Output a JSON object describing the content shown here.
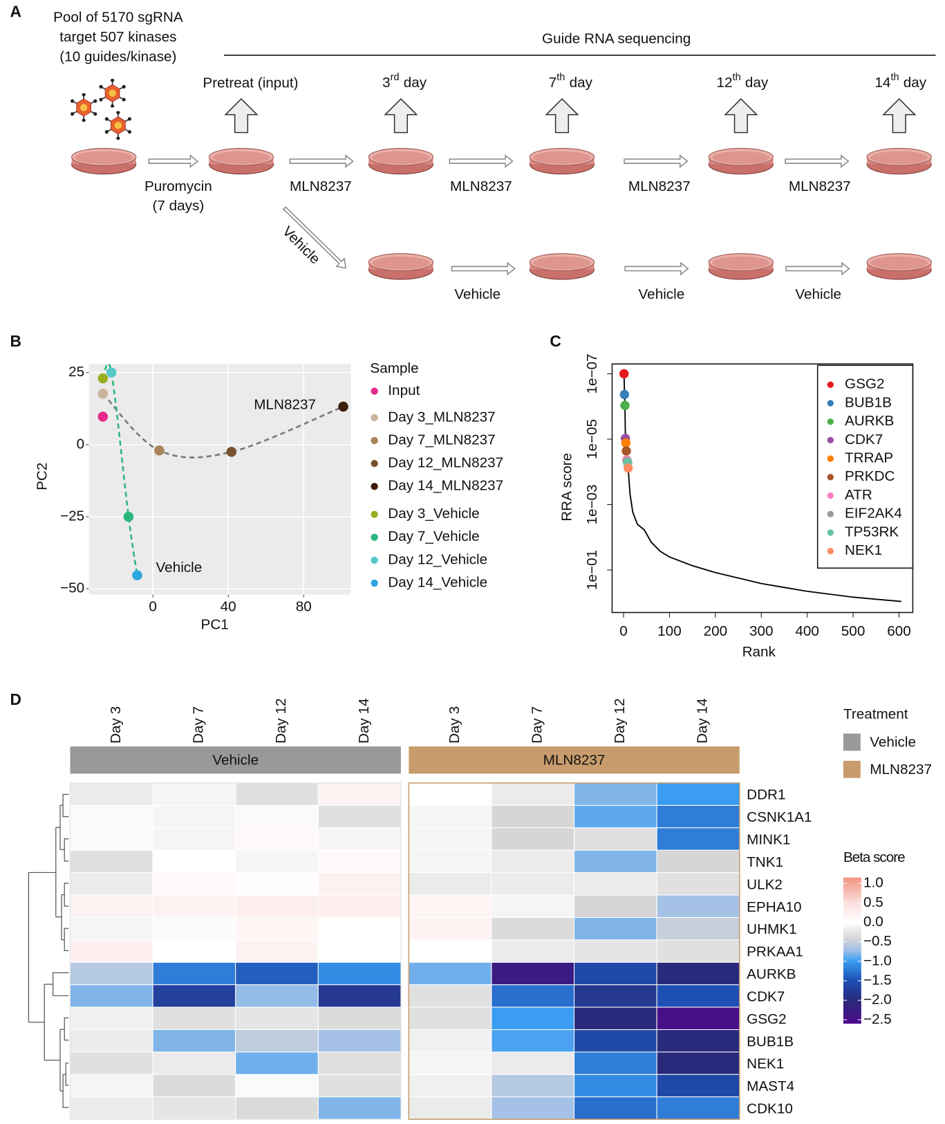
{
  "panel_labels": [
    "A",
    "B",
    "C",
    "D"
  ],
  "schematic": {
    "pool": [
      "Pool of 5170 sgRNA",
      "target 507 kinases",
      "(10 guides/kinase)"
    ],
    "sequencing": "Guide RNA sequencing",
    "first_timepoint": "Pretreat (input)",
    "timepoints": [
      {
        "num": "3",
        "sup": "rd",
        "unit": "day"
      },
      {
        "num": "7",
        "sup": "th",
        "unit": "day"
      },
      {
        "num": "12",
        "sup": "th",
        "unit": "day"
      },
      {
        "num": "14",
        "sup": "th",
        "unit": "day"
      }
    ],
    "selection": [
      "Puromycin",
      "(7 days)"
    ],
    "treatment_steps": [
      "MLN8237",
      "MLN8237",
      "MLN8237",
      "MLN8237"
    ],
    "vehicle_branch": "Vehicle",
    "vehicle_steps": [
      "Vehicle",
      "Vehicle",
      "Vehicle"
    ]
  },
  "chart_data": [
    {
      "type": "scatter",
      "xlabel": "PC1",
      "ylabel": "PC2",
      "xlim": [
        -34,
        105
      ],
      "ylim": [
        -52,
        28
      ],
      "xticks": [
        0,
        40,
        80
      ],
      "yticks": [
        25,
        0,
        {
          "value": -25,
          "label": "−25"
        },
        {
          "value": -50,
          "label": "−50"
        }
      ],
      "grid": true,
      "background": "#ebebeb",
      "legend_title": "Sample",
      "annotations": [
        "MLN8237",
        "Vehicle"
      ],
      "series": [
        {
          "name": "Input",
          "color": "#e7298a",
          "x": [
            -26.5
          ],
          "y": [
            9.7
          ]
        },
        {
          "name": "Day 3_MLN8237",
          "color": "#c9b49b",
          "x": [
            -26.5
          ],
          "y": [
            17.7
          ]
        },
        {
          "name": "Day 7_MLN8237",
          "color": "#a8845a",
          "x": [
            3.4
          ],
          "y": [
            -2
          ]
        },
        {
          "name": "Day 12_MLN8237",
          "color": "#7a5230",
          "x": [
            41.7
          ],
          "y": [
            -2.5
          ]
        },
        {
          "name": "Day 14_MLN8237",
          "color": "#3d1f0a",
          "x": [
            101
          ],
          "y": [
            13.2
          ]
        },
        {
          "name": "Day 3_Vehicle",
          "color": "#9aad1f",
          "x": [
            -26.5
          ],
          "y": [
            23
          ]
        },
        {
          "name": "Day 7_Vehicle",
          "color": "#2bb57e",
          "x": [
            -12.9
          ],
          "y": [
            -25
          ]
        },
        {
          "name": "Day 12_Vehicle",
          "color": "#55c8c8",
          "x": [
            -22
          ],
          "y": [
            25
          ]
        },
        {
          "name": "Day 14_Vehicle",
          "color": "#2ba6e0",
          "x": [
            -8.3
          ],
          "y": [
            -45.3
          ]
        }
      ]
    },
    {
      "type": "line",
      "xlabel": "Rank",
      "ylabel": "RRA score",
      "log_y": true,
      "y_reversed": true,
      "xlim": [
        -25,
        630
      ],
      "ylim": [
        5e-08,
        2
      ],
      "xticks": [
        0,
        100,
        200,
        300,
        400,
        500,
        600
      ],
      "yticks": [
        {
          "value": 1e-07,
          "label": "1e−07"
        },
        {
          "value": 1e-05,
          "label": "1e−05"
        },
        {
          "value": 0.001,
          "label": "1e−03"
        },
        {
          "value": 0.1,
          "label": "1e−01"
        }
      ],
      "line_color": "#000000",
      "curve": {
        "x": [
          1,
          2,
          3,
          4,
          5,
          6,
          7,
          8,
          9,
          10,
          14,
          20,
          30,
          45,
          60,
          80,
          100,
          150,
          200,
          300,
          400,
          500,
          605
        ],
        "values": [
          1e-07,
          4.3e-07,
          9.3e-07,
          9.5e-06,
          1.3e-05,
          2.3e-05,
          4.3e-05,
          4.8e-05,
          5.3e-05,
          7.6e-05,
          0.00047,
          0.0017,
          0.004,
          0.0059,
          0.014,
          0.027,
          0.04,
          0.074,
          0.12,
          0.26,
          0.45,
          0.68,
          0.92
        ]
      },
      "series": [
        {
          "name": "GSG2",
          "color": "#e41a1c",
          "label_color": "#1f1fe6",
          "x": [
            1
          ],
          "values": [
            1e-07
          ]
        },
        {
          "name": "BUB1B",
          "color": "#377eb8",
          "label_color": "#1f1fe6",
          "x": [
            2
          ],
          "values": [
            4.3e-07
          ]
        },
        {
          "name": "AURKB",
          "color": "#4daf4a",
          "label_color": "#1f1fe6",
          "x": [
            3
          ],
          "values": [
            9.3e-07
          ]
        },
        {
          "name": "CDK7",
          "color": "#984ea3",
          "label_color": "#111111",
          "x": [
            4
          ],
          "values": [
            9.5e-06
          ]
        },
        {
          "name": "TRRAP",
          "color": "#ff7f00",
          "label_color": "#111111",
          "x": [
            5
          ],
          "values": [
            1.3e-05
          ]
        },
        {
          "name": "PRKDC",
          "color": "#a65628",
          "label_color": "#111111",
          "x": [
            6
          ],
          "values": [
            2.3e-05
          ]
        },
        {
          "name": "ATR",
          "color": "#f781bf",
          "label_color": "#111111",
          "x": [
            7
          ],
          "values": [
            4.3e-05
          ]
        },
        {
          "name": "EIF2AK4",
          "color": "#999999",
          "label_color": "#111111",
          "x": [
            8
          ],
          "values": [
            4.8e-05
          ]
        },
        {
          "name": "TP53RK",
          "color": "#66c2a5",
          "label_color": "#111111",
          "x": [
            9
          ],
          "values": [
            5.3e-05
          ]
        },
        {
          "name": "NEK1",
          "color": "#fc8d62",
          "label_color": "#111111",
          "x": [
            10
          ],
          "values": [
            7.6e-05
          ]
        }
      ]
    },
    {
      "type": "heatmap",
      "groups": [
        {
          "name": "Vehicle",
          "color": "#999999"
        },
        {
          "name": "MLN8237",
          "color": "#c89c6c"
        }
      ],
      "columns": [
        "Day 3",
        "Day 7",
        "Day 12",
        "Day 14",
        "Day 3",
        "Day 7",
        "Day 12",
        "Day 14"
      ],
      "rows": [
        "DDR1",
        "CSNK1A1",
        "MINK1",
        "TNK1",
        "ULK2",
        "EPHA10",
        "UHMK1",
        "PRKAA1",
        "AURKB",
        "CDK7",
        "GSG2",
        "BUB1B",
        "NEK1",
        "MAST4",
        "CDK10"
      ],
      "values": [
        [
          -0.2,
          -0.1,
          -0.3,
          0.2,
          0,
          -0.2,
          -0.8,
          -1.0
        ],
        [
          -0.05,
          -0.1,
          -0.05,
          -0.3,
          -0.1,
          -0.4,
          -0.9,
          -1.2
        ],
        [
          -0.05,
          -0.1,
          0.1,
          -0.1,
          -0.1,
          -0.4,
          -0.3,
          -1.2
        ],
        [
          -0.3,
          0,
          -0.1,
          0.1,
          -0.1,
          -0.2,
          -0.8,
          -0.4
        ],
        [
          -0.2,
          0.1,
          0.05,
          0.2,
          -0.2,
          -0.2,
          -0.2,
          -0.3
        ],
        [
          0.2,
          0.2,
          0.25,
          0.25,
          0.15,
          -0.1,
          -0.4,
          -0.7
        ],
        [
          -0.1,
          -0.05,
          0.15,
          0,
          0.2,
          -0.35,
          -0.8,
          -0.5
        ],
        [
          0.25,
          0,
          0.2,
          0,
          0,
          -0.2,
          -0.25,
          -0.3
        ],
        [
          -0.6,
          -1.2,
          -1.4,
          -1.1,
          -0.85,
          -2.3,
          -1.6,
          -2.0
        ],
        [
          -0.8,
          -1.7,
          -0.75,
          -1.8,
          -0.3,
          -1.3,
          -1.8,
          -1.5
        ],
        [
          -0.15,
          -0.3,
          -0.25,
          -0.35,
          -0.3,
          -1.0,
          -2.0,
          -2.5
        ],
        [
          -0.2,
          -0.8,
          -0.55,
          -0.7,
          -0.15,
          -0.95,
          -1.6,
          -2.0
        ],
        [
          -0.3,
          -0.2,
          -0.85,
          -0.3,
          -0.1,
          -0.2,
          -1.2,
          -2.0
        ],
        [
          -0.1,
          -0.35,
          -0.05,
          -0.3,
          -0.15,
          -0.6,
          -1.1,
          -1.6
        ],
        [
          -0.2,
          -0.25,
          -0.35,
          -0.8,
          -0.2,
          -0.7,
          -1.3,
          -1.2
        ]
      ],
      "legend_title": "Treatment",
      "colorbar_title": "Beta score",
      "colorscale": [
        {
          "value": 1.15,
          "color": "#f4957f"
        },
        {
          "value": 0.5,
          "color": "#fbdede"
        },
        {
          "value": 0,
          "color": "#ffffff"
        },
        {
          "value": -0.4,
          "color": "#d6d6d6"
        },
        {
          "value": -0.7,
          "color": "#a5c2e6"
        },
        {
          "value": -1.0,
          "color": "#3a9cf2"
        },
        {
          "value": -1.5,
          "color": "#1e4fb2"
        },
        {
          "value": -2.0,
          "color": "#2a2a7c"
        },
        {
          "value": -2.6,
          "color": "#4f0a8c"
        }
      ],
      "clim": [
        -2.6,
        1.15
      ],
      "cticks": [
        {
          "value": 1,
          "label": "1.0"
        },
        {
          "value": 0.5,
          "label": "0.5"
        },
        {
          "value": 0,
          "label": "0.0"
        },
        {
          "value": -0.5,
          "label": "−0.5"
        },
        {
          "value": -1,
          "label": "−1.0"
        },
        {
          "value": -1.5,
          "label": "−1.5"
        },
        {
          "value": -2,
          "label": "−2.0"
        },
        {
          "value": -2.5,
          "label": "−2.5"
        }
      ]
    }
  ]
}
